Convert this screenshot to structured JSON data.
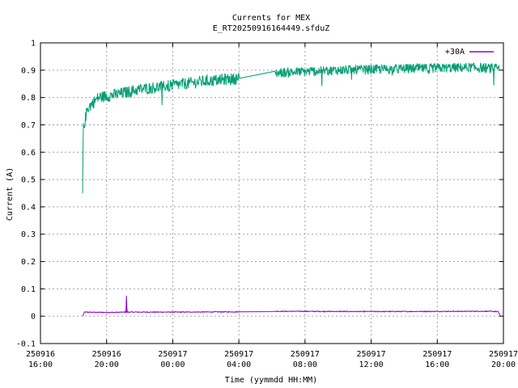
{
  "chart_data": {
    "type": "line",
    "title": "Currents for MEX",
    "subtitle": "E_RT20250916164449.sfduZ",
    "xlabel": "Time (yymmdd HH:MM)",
    "ylabel": "Current (A)",
    "xlim": [
      "2025-09-16 16:00",
      "2025-09-17 20:00"
    ],
    "ylim": [
      -0.1,
      1.0
    ],
    "grid": true,
    "legend_position": "top-right",
    "x_ticks": [
      {
        "date": "250916",
        "time": "16:00",
        "hour": 0
      },
      {
        "date": "250916",
        "time": "20:00",
        "hour": 4
      },
      {
        "date": "250917",
        "time": "00:00",
        "hour": 8
      },
      {
        "date": "250917",
        "time": "04:00",
        "hour": 12
      },
      {
        "date": "250917",
        "time": "08:00",
        "hour": 16
      },
      {
        "date": "250917",
        "time": "12:00",
        "hour": 20
      },
      {
        "date": "250917",
        "time": "16:00",
        "hour": 24
      },
      {
        "date": "250917",
        "time": "20:00",
        "hour": 28
      }
    ],
    "y_ticks": [
      "-0.1",
      "0",
      "0.1",
      "0.2",
      "0.3",
      "0.4",
      "0.5",
      "0.6",
      "0.7",
      "0.8",
      "0.9",
      "1"
    ],
    "series": [
      {
        "name": "+30A",
        "color": "#9400d3",
        "points": [
          [
            "2025-09-16 18:33",
            0.0
          ],
          [
            "2025-09-16 18:40",
            0.015
          ],
          [
            "2025-09-16 19:30",
            0.014
          ],
          [
            "2025-09-16 20:30",
            0.014
          ],
          [
            "2025-09-16 21:10",
            0.015
          ],
          [
            "2025-09-16 21:12",
            0.075
          ],
          [
            "2025-09-16 21:14",
            0.015
          ],
          [
            "2025-09-17 00:00",
            0.015
          ],
          [
            "2025-09-17 04:00",
            0.016
          ],
          [
            "2025-09-17 06:00",
            0.016
          ],
          [
            "2025-09-17 06:10",
            0.018
          ],
          [
            "2025-09-17 12:00",
            0.017
          ],
          [
            "2025-09-17 19:00",
            0.018
          ],
          [
            "2025-09-17 19:40",
            0.017
          ],
          [
            "2025-09-17 19:50",
            0.0
          ]
        ]
      },
      {
        "name": "",
        "color": "#009e73",
        "points": [
          [
            "2025-09-16 18:33",
            0.45
          ],
          [
            "2025-09-16 18:35",
            0.68
          ],
          [
            "2025-09-16 18:50",
            0.76
          ],
          [
            "2025-09-16 19:30",
            0.8
          ],
          [
            "2025-09-16 20:30",
            0.81
          ],
          [
            "2025-09-16 22:00",
            0.83
          ],
          [
            "2025-09-17 00:00",
            0.845
          ],
          [
            "2025-09-17 02:00",
            0.86
          ],
          [
            "2025-09-17 04:00",
            0.87
          ],
          [
            "2025-09-17 06:00",
            0.88
          ],
          [
            "2025-09-17 06:10",
            0.89
          ],
          [
            "2025-09-17 10:00",
            0.9
          ],
          [
            "2025-09-17 14:00",
            0.905
          ],
          [
            "2025-09-17 18:00",
            0.91
          ],
          [
            "2025-09-17 19:45",
            0.905
          ]
        ]
      }
    ]
  }
}
